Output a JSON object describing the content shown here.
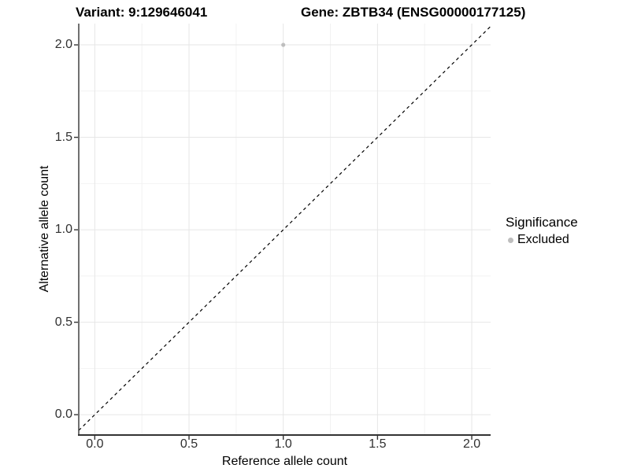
{
  "chart_data": {
    "type": "scatter",
    "title_left": "Variant: 9:129646041",
    "title_right": "Gene: ZBTB34 (ENSG00000177125)",
    "xlabel": "Reference allele count",
    "ylabel": "Alternative allele count",
    "xlim": [
      -0.085,
      2.1
    ],
    "ylim": [
      -0.11,
      2.115
    ],
    "x_ticks": [
      0,
      0.5,
      1,
      1.5,
      2
    ],
    "y_ticks": [
      0,
      0.5,
      1,
      1.5,
      2
    ],
    "x_tick_labels": [
      "0.0",
      "0.5",
      "1.0",
      "1.5",
      "2.0"
    ],
    "y_tick_labels": [
      "0.0",
      "0.5",
      "1.0",
      "1.5",
      "2.0"
    ],
    "x_minor_ticks": [
      0.25,
      0.75,
      1.25,
      1.75
    ],
    "y_minor_ticks": [
      0.25,
      0.75,
      1.25,
      1.75
    ],
    "grid": true,
    "series": [
      {
        "name": "Excluded",
        "color": "#BEBEBE",
        "points": [
          {
            "x": 1.0,
            "y": 2.0
          }
        ]
      }
    ],
    "reference_line": {
      "type": "identity",
      "equation": "y = x",
      "style": "dashed",
      "color": "#000000"
    },
    "legend": {
      "title": "Significance",
      "position": "right",
      "entries": [
        {
          "label": "Excluded",
          "color": "#BEBEBE",
          "marker": "circle"
        }
      ]
    },
    "colors": {
      "background": "#FFFFFF",
      "grid_major": "#E6E6E6",
      "grid_minor": "#F2F2F2",
      "axis_line": "#333333",
      "tick": "#333333",
      "tick_label": "#303030",
      "title": "#000000",
      "point": "#BEBEBE"
    }
  }
}
